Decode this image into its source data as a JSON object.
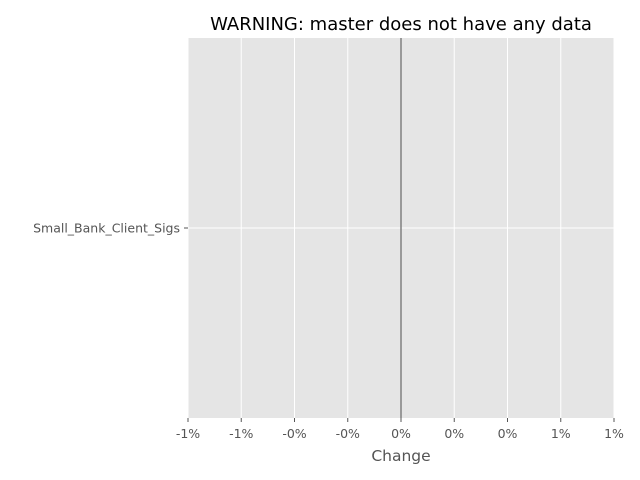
{
  "chart_data": {
    "type": "bar",
    "title": "WARNING: master does not have any data",
    "xlabel": "Change",
    "ylabel": "",
    "orientation": "horizontal",
    "categories": [
      "Small_Bank_Client_Sigs"
    ],
    "values": [
      0
    ],
    "xlim": [
      -1,
      1
    ],
    "xticks": [
      -1,
      -0.75,
      -0.5,
      -0.25,
      0,
      0.25,
      0.5,
      0.75,
      1
    ],
    "xtick_labels": [
      "-1%",
      "-1%",
      "-0%",
      "-0%",
      "0%",
      "0%",
      "0%",
      "1%",
      "1%"
    ],
    "grid": true,
    "zero_line": true
  },
  "colors": {
    "plot_background": "#e5e5e5",
    "grid": "#ffffff",
    "zero_line": "#808080",
    "tick_label": "#555555",
    "title": "#000000"
  }
}
